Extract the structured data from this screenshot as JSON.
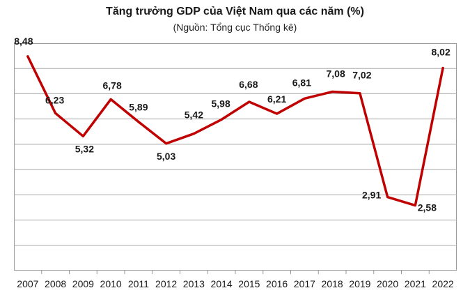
{
  "chart_data": {
    "type": "line",
    "title": "Tăng trưởng GDP của Việt Nam qua các năm (%)",
    "subtitle": "(Nguồn: Tổng cục Thống kê)",
    "xlabel": "",
    "ylabel": "",
    "categories": [
      "2007",
      "2008",
      "2009",
      "2010",
      "2011",
      "2012",
      "2013",
      "2014",
      "2015",
      "2016",
      "2017",
      "2018",
      "2019",
      "2020",
      "2021",
      "2022"
    ],
    "series": [
      {
        "values": [
          8.48,
          6.23,
          5.32,
          6.78,
          5.89,
          5.03,
          5.42,
          5.98,
          6.68,
          6.21,
          6.81,
          7.08,
          7.02,
          2.91,
          2.58,
          8.02
        ],
        "labels": [
          "8,48",
          "6,23",
          "5,32",
          "6,78",
          "5,89",
          "5,03",
          "5,42",
          "5,98",
          "6,68",
          "6,21",
          "6,81",
          "7,08",
          "7,02",
          "2,91",
          "2,58",
          "8,02"
        ]
      }
    ],
    "ylim": [
      0,
      9
    ],
    "grid": true,
    "legend": "none",
    "line_color": "#c00000"
  }
}
